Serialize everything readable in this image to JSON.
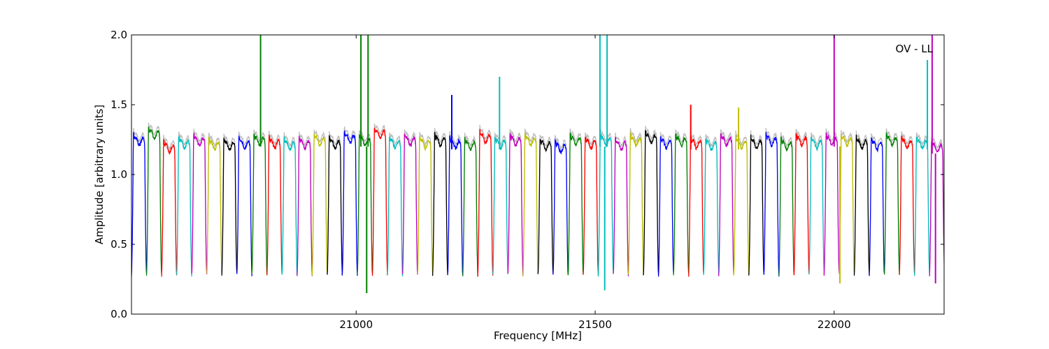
{
  "chart_data": {
    "type": "line",
    "xlabel": "Frequency [MHz]",
    "ylabel": "Amplitude [arbitrary units]",
    "xlim": [
      20530,
      22230
    ],
    "ylim": [
      0.0,
      2.0
    ],
    "x_ticks": [
      21000,
      21500,
      22000
    ],
    "x_tick_labels": [
      "21000",
      "21500",
      "22000"
    ],
    "y_ticks": [
      0.0,
      0.5,
      1.0,
      1.5,
      2.0
    ],
    "y_tick_labels": [
      "0.0",
      "0.5",
      "1.0",
      "1.5",
      "2.0"
    ],
    "annotation": "OV - LL",
    "grid": false,
    "legend": "none",
    "channel_width_mhz": 31.5,
    "band_start_mhz": 20530,
    "channel_colors": [
      "#0000ff",
      "#008000",
      "#ff0000",
      "#00bfbf",
      "#bf00bf",
      "#bfbf00",
      "#000000"
    ],
    "ghost_color": "#bfbfbf",
    "channel_levels": [
      1.2,
      1.25,
      1.15,
      1.18,
      1.2,
      1.17,
      1.17,
      1.18,
      1.2,
      1.18,
      1.17,
      1.18,
      1.2,
      1.18,
      1.22,
      1.2,
      1.25,
      1.18,
      1.2,
      1.18,
      1.2,
      1.18,
      1.17,
      1.22,
      1.18,
      1.2,
      1.2,
      1.17,
      1.15,
      1.2,
      1.18,
      1.2,
      1.17,
      1.2,
      1.22,
      1.18,
      1.2,
      1.18,
      1.17,
      1.2,
      1.18,
      1.18,
      1.2,
      1.17,
      1.2,
      1.18,
      1.2,
      1.2,
      1.18,
      1.17,
      1.2,
      1.18,
      1.18,
      1.15
    ],
    "spikes": [
      {
        "x": 20800,
        "y": 2.0,
        "dir": "up"
      },
      {
        "x": 21010,
        "y": 2.0,
        "dir": "up"
      },
      {
        "x": 21025,
        "y": 2.0,
        "dir": "up"
      },
      {
        "x": 21022,
        "y": 0.15,
        "dir": "down"
      },
      {
        "x": 21200,
        "y": 1.57,
        "dir": "up"
      },
      {
        "x": 21300,
        "y": 1.7,
        "dir": "up"
      },
      {
        "x": 21510,
        "y": 2.0,
        "dir": "up"
      },
      {
        "x": 21525,
        "y": 2.0,
        "dir": "up"
      },
      {
        "x": 21520,
        "y": 0.17,
        "dir": "down"
      },
      {
        "x": 21700,
        "y": 1.5,
        "dir": "up"
      },
      {
        "x": 21800,
        "y": 1.48,
        "dir": "up"
      },
      {
        "x": 22000,
        "y": 2.0,
        "dir": "up"
      },
      {
        "x": 22012,
        "y": 0.22,
        "dir": "down"
      },
      {
        "x": 22195,
        "y": 1.82,
        "dir": "up"
      },
      {
        "x": 22205,
        "y": 2.0,
        "dir": "up"
      },
      {
        "x": 22212,
        "y": 0.22,
        "dir": "down"
      }
    ]
  }
}
